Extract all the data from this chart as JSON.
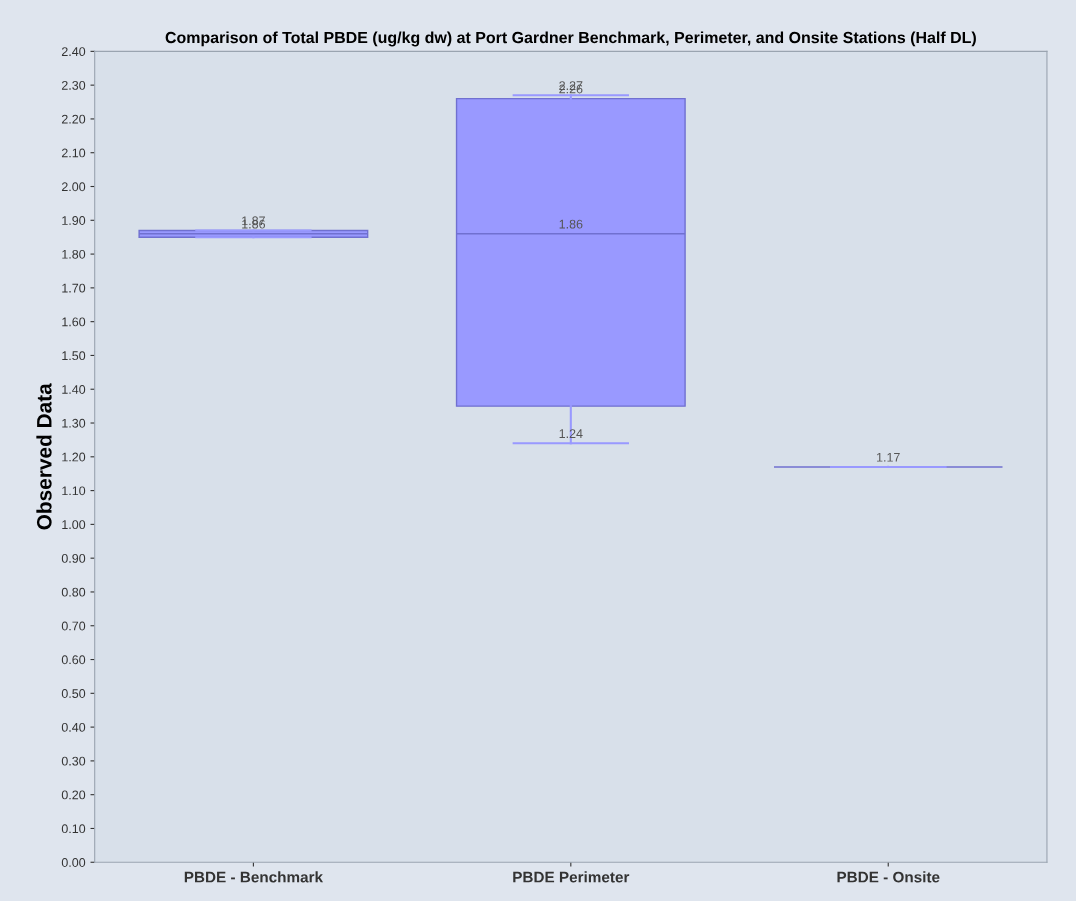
{
  "chart_data": {
    "type": "box",
    "title": "Comparison of Total PBDE (ug/kg dw) at Port Gardner Benchmark, Perimeter, and Onsite Stations (Half DL)",
    "ylabel": "Observed Data",
    "categories": [
      "PBDE - Benchmark",
      "PBDE Perimeter",
      "PBDE - Onsite"
    ],
    "color": "#9999ff",
    "boxes": [
      {
        "low": 1.85,
        "q1": 1.85,
        "median": 1.86,
        "q3": 1.87,
        "high": 1.87
      },
      {
        "low": 1.24,
        "q1": 1.35,
        "median": 1.86,
        "q3": 2.26,
        "high": 2.27
      },
      {
        "low": 1.17,
        "q1": 1.17,
        "median": 1.17,
        "q3": 1.17,
        "high": 1.17
      }
    ],
    "annotations": [
      {
        "text": "1.87",
        "x": "PBDE - Benchmark",
        "y": 1.87
      },
      {
        "text": "1.86",
        "x": "PBDE - Benchmark",
        "y": 1.86
      },
      {
        "text": "2.27",
        "x": "PBDE Perimeter",
        "y": 2.27
      },
      {
        "text": "2.26",
        "x": "PBDE Perimeter",
        "y": 2.26
      },
      {
        "text": "1.86",
        "x": "PBDE Perimeter",
        "y": 1.86
      },
      {
        "text": "1.24",
        "x": "PBDE Perimeter",
        "y": 1.24
      },
      {
        "text": "1.17",
        "x": "PBDE - Onsite",
        "y": 1.17
      }
    ],
    "ylim": [
      0,
      2.4
    ],
    "yticks": [
      {
        "value": 0,
        "label": "0.00"
      },
      {
        "value": 0.1,
        "label": "0.10"
      },
      {
        "value": 0.2,
        "label": "0.20"
      },
      {
        "value": 0.3,
        "label": "0.30"
      },
      {
        "value": 0.4,
        "label": "0.40"
      },
      {
        "value": 0.5,
        "label": "0.50"
      },
      {
        "value": 0.6,
        "label": "0.60"
      },
      {
        "value": 0.7,
        "label": "0.70"
      },
      {
        "value": 0.8,
        "label": "0.80"
      },
      {
        "value": 0.9,
        "label": "0.90"
      },
      {
        "value": 1.0,
        "label": "1.00"
      },
      {
        "value": 1.1,
        "label": "1.10"
      },
      {
        "value": 1.2,
        "label": "1.20"
      },
      {
        "value": 1.3,
        "label": "1.30"
      },
      {
        "value": 1.4,
        "label": "1.40"
      },
      {
        "value": 1.5,
        "label": "1.50"
      },
      {
        "value": 1.6,
        "label": "1.60"
      },
      {
        "value": 1.7,
        "label": "1.70"
      },
      {
        "value": 1.8,
        "label": "1.80"
      },
      {
        "value": 1.9,
        "label": "1.90"
      },
      {
        "value": 2.0,
        "label": "2.00"
      },
      {
        "value": 2.1,
        "label": "2.10"
      },
      {
        "value": 2.2,
        "label": "2.20"
      },
      {
        "value": 2.3,
        "label": "2.30"
      },
      {
        "value": 2.4,
        "label": "2.40"
      }
    ],
    "grid": false
  }
}
